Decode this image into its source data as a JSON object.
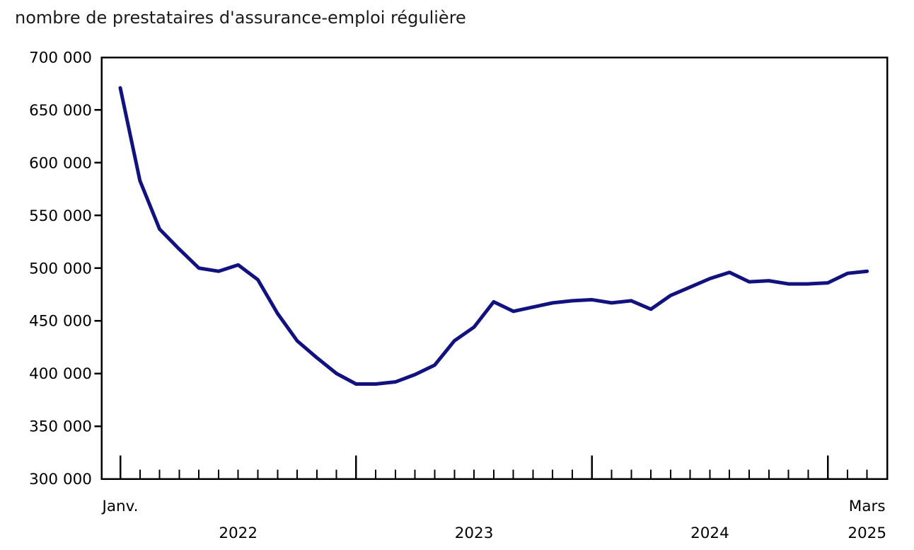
{
  "title": "nombre de prestataires d'assurance-emploi régulière",
  "chart_data": {
    "type": "line",
    "title": "nombre de prestataires d'assurance-emploi régulière",
    "grid": false,
    "legend": false,
    "line_color": "#12127e",
    "axis_color": "#000000",
    "x": {
      "frequency": "monthly",
      "start": "Janv. 2022",
      "end": "Mars 2025",
      "first_tick_label": "Janv.",
      "last_tick_label": "Mars",
      "year_labels": [
        "2022",
        "2023",
        "2024",
        "2025"
      ]
    },
    "y": {
      "min": 300000,
      "max": 700000,
      "tick_interval": 50000,
      "tick_labels": [
        "700 000",
        "650 000",
        "600 000",
        "550 000",
        "500 000",
        "450 000",
        "400 000",
        "350 000",
        "300 000"
      ]
    },
    "x_months": [
      "2022-01",
      "2022-02",
      "2022-03",
      "2022-04",
      "2022-05",
      "2022-06",
      "2022-07",
      "2022-08",
      "2022-09",
      "2022-10",
      "2022-11",
      "2022-12",
      "2023-01",
      "2023-02",
      "2023-03",
      "2023-04",
      "2023-05",
      "2023-06",
      "2023-07",
      "2023-08",
      "2023-09",
      "2023-10",
      "2023-11",
      "2023-12",
      "2024-01",
      "2024-02",
      "2024-03",
      "2024-04",
      "2024-05",
      "2024-06",
      "2024-07",
      "2024-08",
      "2024-09",
      "2024-10",
      "2024-11",
      "2024-12",
      "2025-01",
      "2025-02",
      "2025-03"
    ],
    "values": [
      671000,
      583000,
      537000,
      518000,
      500000,
      497000,
      503000,
      489000,
      457000,
      431000,
      415000,
      400000,
      390000,
      390000,
      392000,
      399000,
      408000,
      431000,
      444000,
      468000,
      459000,
      463000,
      467000,
      469000,
      470000,
      467000,
      469000,
      461000,
      474000,
      482000,
      490000,
      496000,
      487000,
      488000,
      485000,
      485000,
      486000,
      495000,
      497000
    ]
  }
}
